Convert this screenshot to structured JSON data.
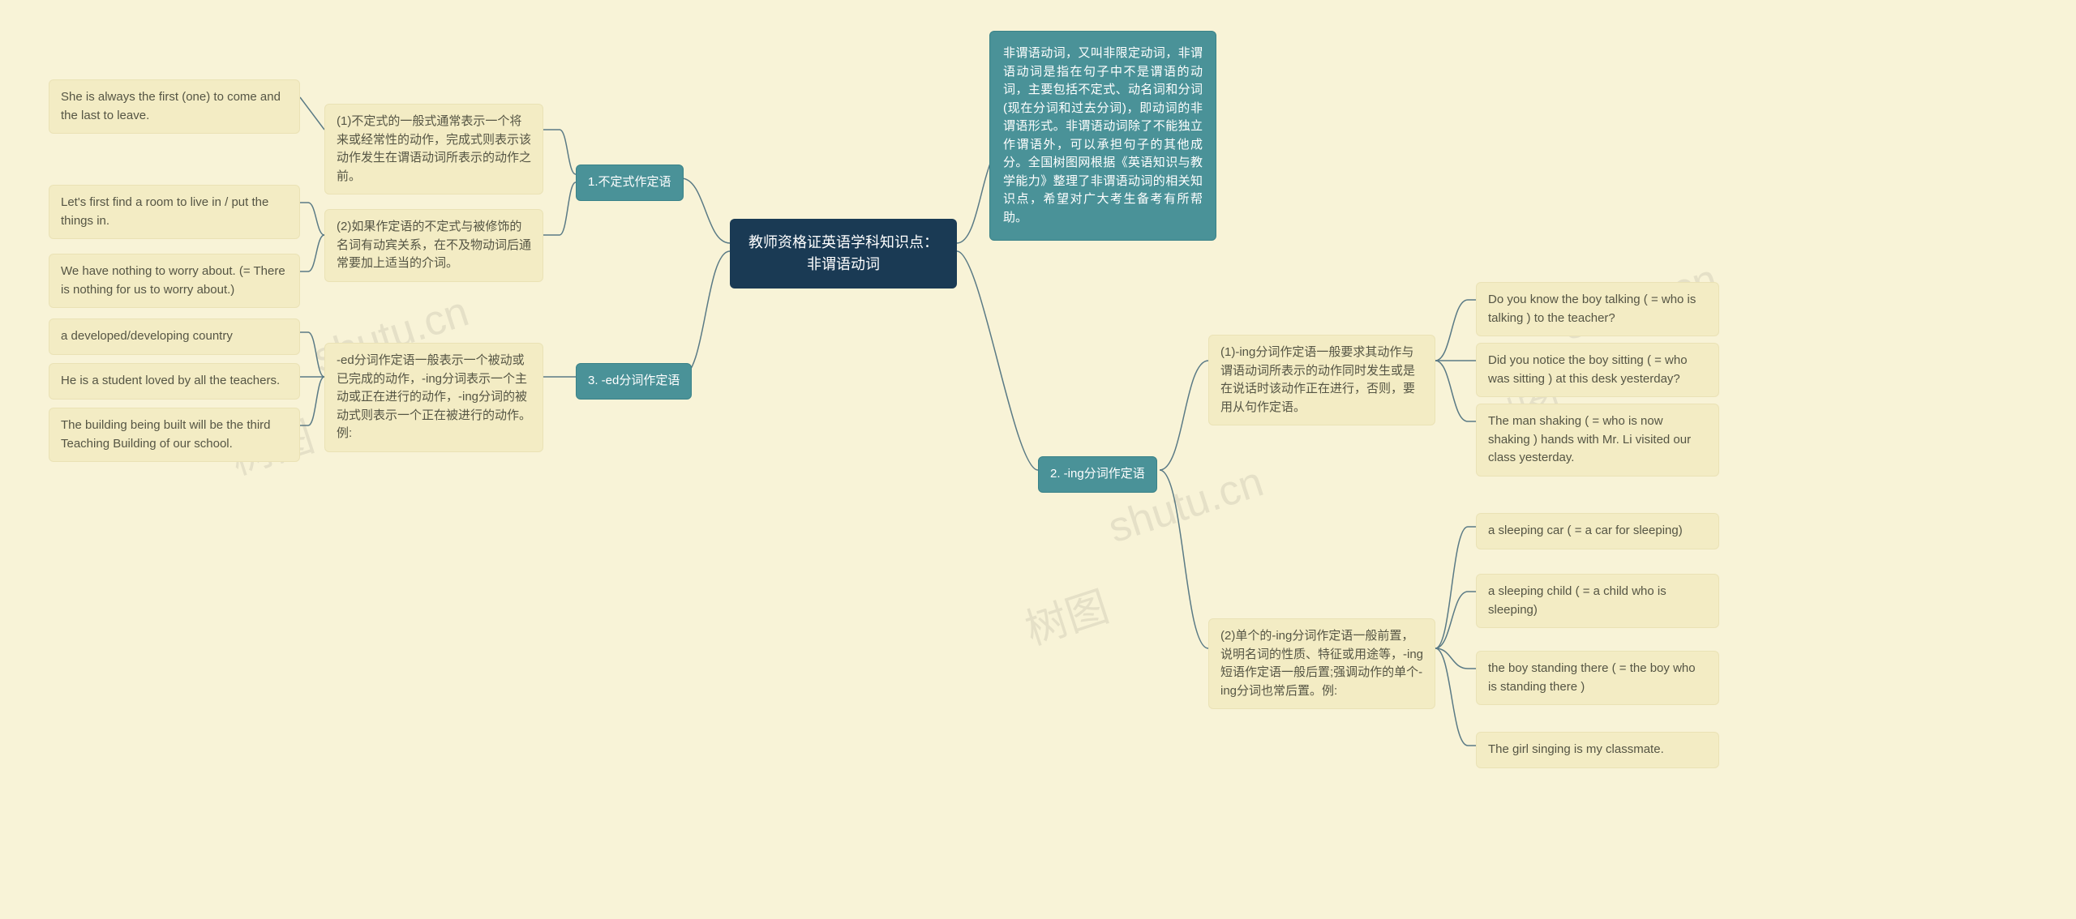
{
  "root": {
    "title": "教师资格证英语学科知识点：非谓语动词"
  },
  "intro": {
    "text": "非谓语动词，又叫非限定动词，非谓语动词是指在句子中不是谓语的动词，主要包括不定式、动名词和分词(现在分词和过去分词)，即动词的非谓语形式。非谓语动词除了不能独立作谓语外，可以承担句子的其他成分。全国树图网根据《英语知识与教学能力》整理了非谓语动词的相关知识点，希望对广大考生备考有所帮助。"
  },
  "branch1": {
    "title": "1.不定式作定语",
    "sub1": {
      "text": "(1)不定式的一般式通常表示一个将来或经常性的动作，完成式则表示该动作发生在谓语动词所表示的动作之前。"
    },
    "sub2": {
      "text": "(2)如果作定语的不定式与被修饰的名词有动宾关系，在不及物动词后通常要加上适当的介词。"
    },
    "leaf1": {
      "text": "She is always the first (one) to come and the last to leave."
    },
    "leaf2": {
      "text": "Let's first find a room to live in / put the things in."
    },
    "leaf3": {
      "text": "We have nothing to worry about. (= There is nothing for us to worry about.)"
    }
  },
  "branch2": {
    "title": "2. -ing分词作定语",
    "sub1": {
      "text": "(1)-ing分词作定语一般要求其动作与谓语动词所表示的动作同时发生或是在说话时该动作正在进行，否则，要用从句作定语。"
    },
    "sub2": {
      "text": "(2)单个的-ing分词作定语一般前置，说明名词的性质、特征或用途等，-ing短语作定语一般后置;强调动作的单个-ing分词也常后置。例:"
    },
    "leaf1": {
      "text": "Do you know the boy talking ( = who is talking ) to the teacher?"
    },
    "leaf2": {
      "text": "Did you notice the boy sitting ( = who was sitting ) at this desk yesterday?"
    },
    "leaf3": {
      "text": "The man shaking ( = who is now shaking ) hands with Mr. Li visited our class yesterday."
    },
    "leaf4": {
      "text": "a sleeping car ( = a car for sleeping)"
    },
    "leaf5": {
      "text": "a sleeping child ( = a child who is sleeping)"
    },
    "leaf6": {
      "text": "the boy standing there ( = the boy who is standing there )"
    },
    "leaf7": {
      "text": "The girl singing is my classmate."
    }
  },
  "branch3": {
    "title": "3. -ed分词作定语",
    "sub1": {
      "text": "-ed分词作定语一般表示一个被动或已完成的动作，-ing分词表示一个主动或正在进行的动作，-ing分词的被动式则表示一个正在被进行的动作。例:"
    },
    "leaf1": {
      "text": "a developed/developing country"
    },
    "leaf2": {
      "text": "He is a student loved by all the teachers."
    },
    "leaf3": {
      "text": "The building being built will be the third Teaching Building of our school."
    }
  },
  "watermark": {
    "text_cn": "树图",
    "text_en": "shutu.cn"
  },
  "style": {
    "bg": "#f8f3d7",
    "root_bg": "#1a3a54",
    "teal_bg": "#4a9298",
    "cream_bg": "#f3ecc4",
    "connector_color": "#5a7a85"
  }
}
